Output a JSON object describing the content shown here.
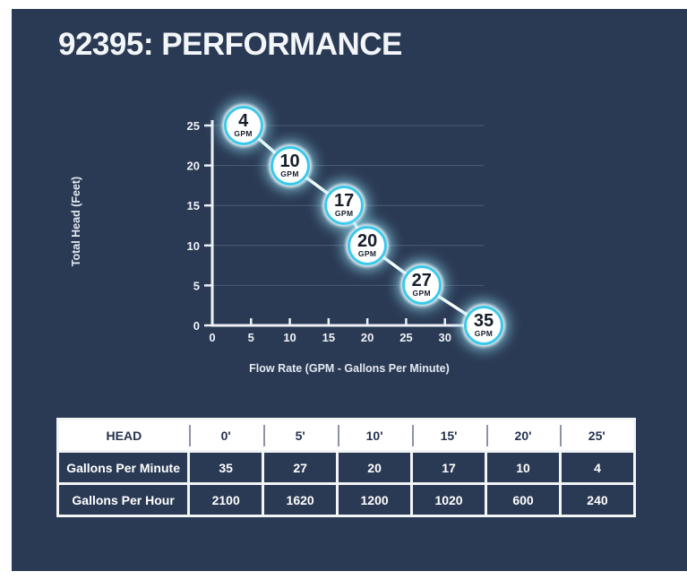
{
  "title": "92395: PERFORMANCE",
  "colors": {
    "panel_bg": "#2b3a54",
    "page_bg": "#ffffff",
    "accent_cyan": "#3ac9ea",
    "line_color": "#ffffff",
    "text_light": "#f3f6f9",
    "table_header_bg": "#ffffff",
    "table_header_text": "#24324e",
    "table_border": "#f2f4f6"
  },
  "chart_data": {
    "type": "line",
    "title": "",
    "xlabel": "Flow Rate (GPM - Gallons Per Minute)",
    "ylabel": "Total Head (Feet)",
    "x_ticks": [
      0,
      5,
      10,
      15,
      20,
      25,
      30
    ],
    "y_ticks": [
      0,
      5,
      10,
      15,
      20,
      25
    ],
    "xlim": [
      0,
      35
    ],
    "ylim": [
      0,
      25
    ],
    "grid": "horizontal",
    "legend": "none",
    "unit_label": "GPM",
    "points": [
      {
        "flow_gpm": 4,
        "head_feet": 25
      },
      {
        "flow_gpm": 10,
        "head_feet": 20
      },
      {
        "flow_gpm": 17,
        "head_feet": 15
      },
      {
        "flow_gpm": 20,
        "head_feet": 10
      },
      {
        "flow_gpm": 27,
        "head_feet": 5
      },
      {
        "flow_gpm": 35,
        "head_feet": 0
      }
    ]
  },
  "table": {
    "header": [
      "HEAD",
      "0'",
      "5'",
      "10'",
      "15'",
      "20'",
      "25'"
    ],
    "rows": [
      {
        "label": "Gallons Per Minute",
        "values": [
          "35",
          "27",
          "20",
          "17",
          "10",
          "4"
        ]
      },
      {
        "label": "Gallons Per Hour",
        "values": [
          "2100",
          "1620",
          "1200",
          "1020",
          "600",
          "240"
        ]
      }
    ]
  }
}
